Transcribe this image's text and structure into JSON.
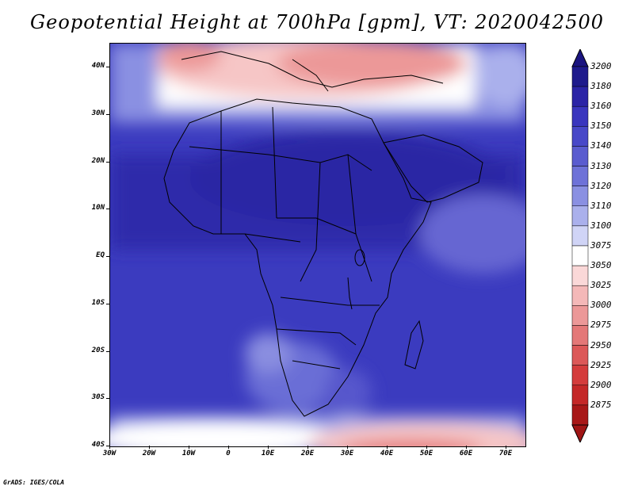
{
  "title": "Geopotential Height at 700hPa [gpm], VT: 2020042500",
  "credit": "GrADS: IGES/COLA",
  "lat_labels": [
    "40N",
    "30N",
    "20N",
    "10N",
    "EQ",
    "10S",
    "20S",
    "30S",
    "40S"
  ],
  "lon_labels": [
    "30W",
    "20W",
    "10W",
    "0",
    "10E",
    "20E",
    "30E",
    "40E",
    "50E",
    "60E",
    "70E"
  ],
  "colorbar": {
    "labels": [
      "3200",
      "3180",
      "3160",
      "3150",
      "3140",
      "3130",
      "3120",
      "3110",
      "3100",
      "3075",
      "3050",
      "3025",
      "3000",
      "2975",
      "2950",
      "2925",
      "2900",
      "2875"
    ],
    "colors": [
      "#1e1a8c",
      "#2b24a6",
      "#3a36be",
      "#4848c8",
      "#5a5ccf",
      "#6e72d8",
      "#8a90e2",
      "#aab0ec",
      "#d0d4f6",
      "#ffffff",
      "#fad8d8",
      "#f4b8b8",
      "#ec9898",
      "#e47878",
      "#dc5858",
      "#d43c3c",
      "#c42828",
      "#a81818"
    ],
    "top_color": "#1a1480",
    "bottom_color": "#a01515"
  }
}
